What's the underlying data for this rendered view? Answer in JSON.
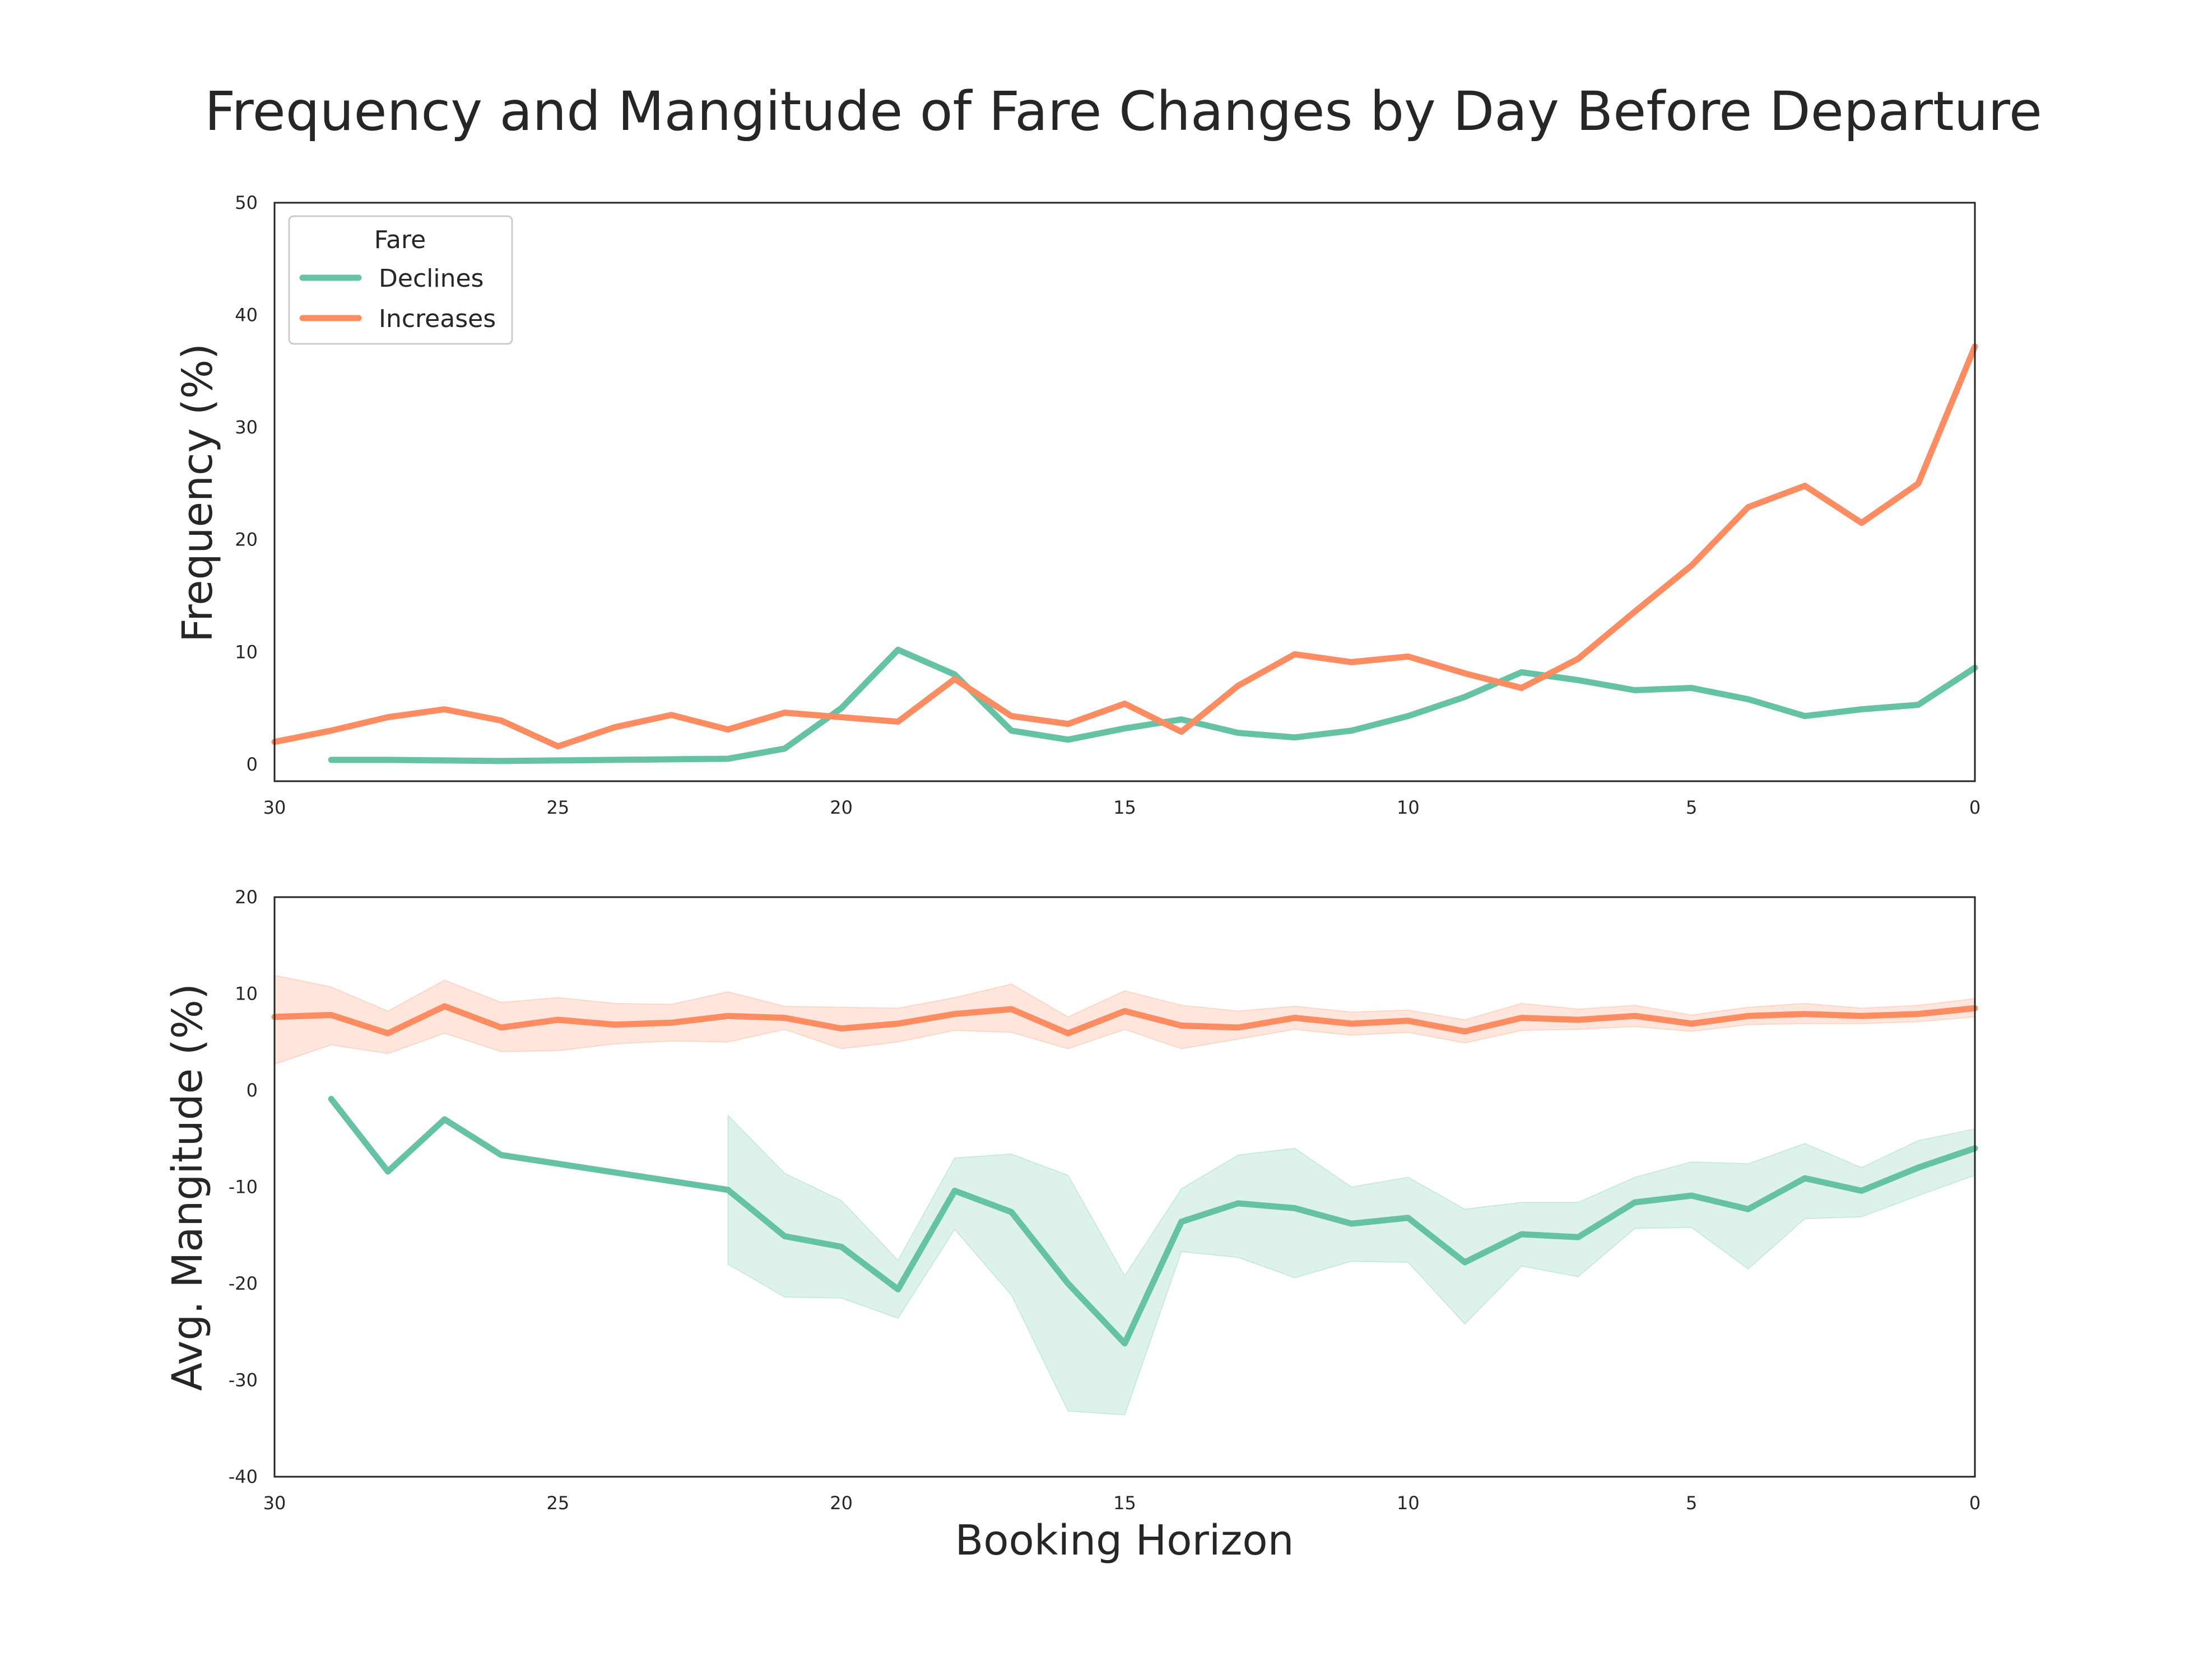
{
  "chart_data": {
    "type": "line",
    "title": "Frequency and Mangitude of Fare Changes by Day Before Departure",
    "xlabel": "Booking Horizon",
    "legend": {
      "title": "Fare",
      "placement": "top-left"
    },
    "colors": {
      "Declines": "#66c2a5",
      "Increases": "#fc8d62"
    },
    "panels": [
      {
        "ylabel": "Frequency (%)",
        "ylim": [
          -1.5,
          50
        ],
        "xlim": [
          30,
          0
        ],
        "xticks": [
          "30",
          "25",
          "20",
          "15",
          "10",
          "5",
          "0"
        ],
        "yticks": [
          "0",
          "10",
          "20",
          "30",
          "40",
          "50"
        ],
        "series": [
          {
            "name": "Declines",
            "x": [
              29,
              28,
              27,
              26,
              25,
              24,
              23,
              22,
              21,
              20,
              19,
              18,
              17,
              16,
              15,
              14,
              13,
              12,
              11,
              10,
              9,
              8,
              7,
              6,
              5,
              4,
              3,
              2,
              1,
              0
            ],
            "values": [
              0.4,
              0.4,
              0.35,
              0.3,
              0.35,
              0.4,
              0.45,
              0.5,
              1.4,
              5.0,
              10.2,
              8.0,
              3.0,
              2.2,
              3.2,
              4.0,
              2.8,
              2.4,
              3.0,
              4.3,
              6.0,
              8.2,
              7.5,
              6.6,
              6.8,
              5.8,
              4.3,
              4.9,
              5.3,
              8.6
            ]
          },
          {
            "name": "Increases",
            "x": [
              30,
              29,
              28,
              27,
              26,
              25,
              24,
              23,
              22,
              21,
              20,
              19,
              18,
              17,
              16,
              15,
              14,
              13,
              12,
              11,
              10,
              9,
              8,
              7,
              6,
              5,
              4,
              3,
              2,
              1,
              0
            ],
            "values": [
              2.0,
              3.0,
              4.2,
              4.9,
              3.9,
              1.6,
              3.3,
              4.4,
              3.1,
              4.6,
              4.2,
              3.8,
              7.6,
              4.3,
              3.6,
              5.4,
              2.9,
              7.0,
              9.8,
              9.1,
              9.6,
              8.1,
              6.8,
              9.4,
              13.6,
              17.7,
              22.9,
              24.8,
              21.5,
              25.0,
              37.2
            ]
          }
        ]
      },
      {
        "ylabel": "Avg. Mangitude (%)",
        "ylim": [
          -40,
          20
        ],
        "xlim": [
          30,
          0
        ],
        "xticks": [
          "30",
          "25",
          "20",
          "15",
          "10",
          "5",
          "0"
        ],
        "yticks": [
          "-40",
          "-30",
          "-20",
          "-10",
          "0",
          "10",
          "20"
        ],
        "series": [
          {
            "name": "Declines",
            "x": [
              29,
              28,
              27,
              26,
              22,
              21,
              20,
              19,
              18,
              17,
              16,
              15,
              14,
              13,
              12,
              11,
              10,
              9,
              8,
              7,
              6,
              5,
              4,
              3,
              2,
              1,
              0
            ],
            "values": [
              -0.9,
              -8.4,
              -3.0,
              -6.7,
              -10.3,
              -15.1,
              -16.2,
              -20.6,
              -10.4,
              -12.6,
              -20.0,
              -26.2,
              -13.6,
              -11.7,
              -12.2,
              -13.8,
              -13.2,
              -17.8,
              -14.9,
              -15.2,
              -11.6,
              -10.9,
              -12.3,
              -9.1,
              -10.4,
              -8.0,
              -6.0
            ],
            "ci_x": [
              22,
              21,
              20,
              19,
              18,
              17,
              16,
              15,
              14,
              13,
              12,
              11,
              10,
              9,
              8,
              7,
              6,
              5,
              4,
              3,
              2,
              1,
              0
            ],
            "ci_low": [
              -18.0,
              -21.4,
              -21.5,
              -23.6,
              -14.4,
              -21.2,
              -33.2,
              -33.6,
              -16.7,
              -17.3,
              -19.4,
              -17.7,
              -17.8,
              -24.2,
              -18.2,
              -19.3,
              -14.3,
              -14.2,
              -18.5,
              -13.3,
              -13.1,
              -10.9,
              -8.8
            ],
            "ci_high": [
              -2.6,
              -8.6,
              -11.4,
              -17.6,
              -7.0,
              -6.6,
              -8.8,
              -19.2,
              -10.2,
              -6.7,
              -6.0,
              -10.0,
              -9.0,
              -12.3,
              -11.6,
              -11.6,
              -9.0,
              -7.4,
              -7.6,
              -5.5,
              -8.0,
              -5.2,
              -4.0
            ]
          },
          {
            "name": "Increases",
            "x": [
              30,
              29,
              28,
              27,
              26,
              25,
              24,
              23,
              22,
              21,
              20,
              19,
              18,
              17,
              16,
              15,
              14,
              13,
              12,
              11,
              10,
              9,
              8,
              7,
              6,
              5,
              4,
              3,
              2,
              1,
              0
            ],
            "values": [
              7.6,
              7.8,
              5.9,
              8.7,
              6.5,
              7.3,
              6.8,
              7.0,
              7.7,
              7.5,
              6.4,
              6.9,
              7.9,
              8.4,
              5.9,
              8.2,
              6.7,
              6.5,
              7.5,
              6.9,
              7.2,
              6.1,
              7.5,
              7.3,
              7.7,
              6.9,
              7.7,
              7.9,
              7.7,
              7.9,
              8.5
            ],
            "ci_low": [
              2.7,
              4.7,
              3.8,
              5.9,
              4.0,
              4.1,
              4.8,
              5.1,
              5.0,
              6.3,
              4.3,
              5.0,
              6.2,
              6.0,
              4.3,
              6.3,
              4.3,
              5.3,
              6.3,
              5.7,
              6.0,
              4.9,
              6.2,
              6.3,
              6.6,
              6.1,
              6.8,
              6.9,
              6.9,
              7.1,
              7.6
            ],
            "ci_high": [
              11.9,
              10.7,
              8.2,
              11.4,
              9.1,
              9.6,
              9.0,
              8.9,
              10.2,
              8.7,
              8.6,
              8.5,
              9.6,
              11.0,
              7.6,
              10.3,
              8.8,
              8.2,
              8.7,
              8.1,
              8.3,
              7.3,
              9.0,
              8.4,
              8.8,
              7.8,
              8.6,
              9.0,
              8.5,
              8.8,
              9.5
            ]
          }
        ]
      }
    ]
  }
}
